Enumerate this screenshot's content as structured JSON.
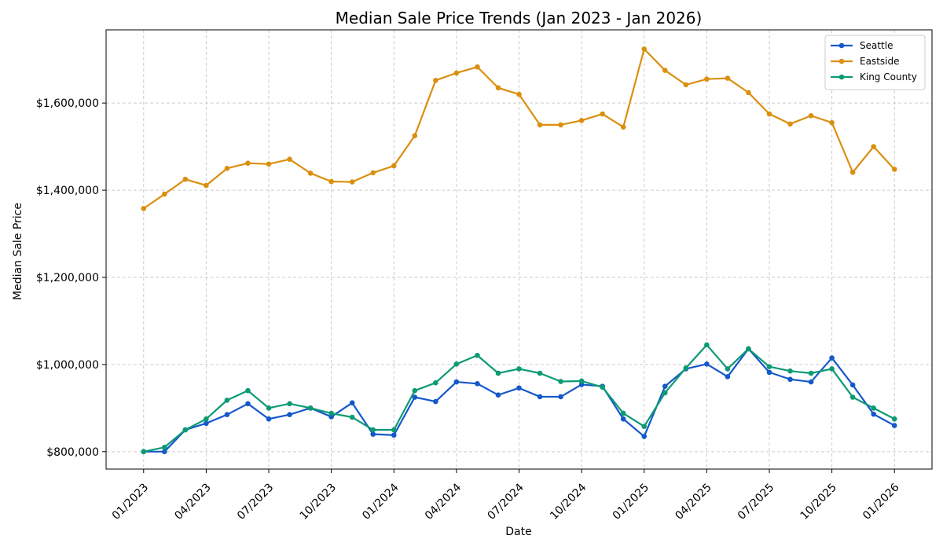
{
  "chart_data": {
    "type": "line",
    "title": "Median Sale Price Trends (Jan 2023 - Jan 2026)",
    "xlabel": "Date",
    "ylabel": "Median Sale Price",
    "x_tick_labels": [
      "01/2023",
      "04/2023",
      "07/2023",
      "10/2023",
      "01/2024",
      "04/2024",
      "07/2024",
      "10/2024",
      "01/2025",
      "04/2025",
      "07/2025",
      "10/2025",
      "01/2026"
    ],
    "x_tick_month_index": [
      0,
      3,
      6,
      9,
      12,
      15,
      18,
      21,
      24,
      27,
      30,
      33,
      36
    ],
    "y_tick_values": [
      800000,
      1000000,
      1200000,
      1400000,
      1600000
    ],
    "y_tick_labels": [
      "$800,000",
      "$1,000,000",
      "$1,200,000",
      "$1,400,000",
      "$1,600,000"
    ],
    "ylim": [
      760000,
      1768000
    ],
    "xlim_months": [
      -1.8,
      37.8
    ],
    "grid": true,
    "legend_position": "top-right",
    "series": [
      {
        "name": "Seattle",
        "color": "#1558C9",
        "values": [
          800000,
          800000,
          850000,
          865000,
          885000,
          910000,
          875000,
          885000,
          900000,
          880000,
          912000,
          840000,
          838000,
          925000,
          915000,
          960000,
          956000,
          930000,
          946000,
          926000,
          926000,
          954000,
          950000,
          875000,
          835000,
          950000,
          990000,
          1001000,
          972000,
          1036000,
          982000,
          966000,
          960000,
          1015000,
          953000,
          886000,
          860000
        ]
      },
      {
        "name": "Eastside",
        "color": "#DB8F0F",
        "values": [
          1358000,
          1391000,
          1425000,
          1411000,
          1450000,
          1462000,
          1460000,
          1471000,
          1439000,
          1420000,
          1419000,
          1440000,
          1456000,
          1525000,
          1652000,
          1669000,
          1683000,
          1635000,
          1620000,
          1550000,
          1550000,
          1560000,
          1575000,
          1545000,
          1724000,
          1675000,
          1642000,
          1655000,
          1657000,
          1624000,
          1575000,
          1552000,
          1571000,
          1555000,
          1441000,
          1500000,
          1448000
        ]
      },
      {
        "name": "King County",
        "color": "#0C9A74",
        "values": [
          800000,
          810000,
          850000,
          875000,
          918000,
          940000,
          900000,
          910000,
          900000,
          888000,
          879000,
          850000,
          850000,
          940000,
          958000,
          1001000,
          1021000,
          980000,
          990000,
          980000,
          961000,
          962000,
          948000,
          888000,
          858000,
          935000,
          992000,
          1045000,
          990000,
          1036000,
          995000,
          985000,
          980000,
          990000,
          925000,
          900000,
          875000
        ]
      }
    ]
  }
}
